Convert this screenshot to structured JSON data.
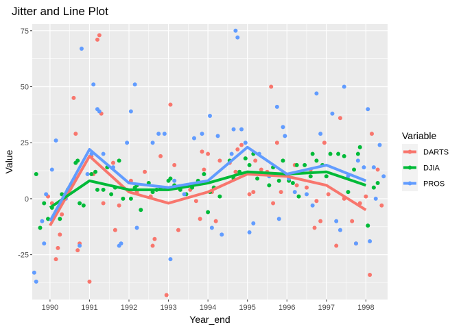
{
  "chart_data": {
    "type": "scatter+line",
    "title": "Jitter and Line Plot",
    "xlabel": "Year_end",
    "ylabel": "Value",
    "xlim": [
      1989.55,
      1998.55
    ],
    "ylim": [
      -45,
      78
    ],
    "x_ticks": [
      1990,
      1991,
      1992,
      1993,
      1994,
      1995,
      1996,
      1997,
      1998
    ],
    "x_tick_labels": [
      "1990",
      "1991",
      "1992",
      "1993",
      "1994",
      "1995",
      "1996",
      "1997",
      "1998"
    ],
    "y_ticks": [
      -25,
      0,
      25,
      50,
      75
    ],
    "y_tick_labels": [
      "-25",
      "0",
      "25",
      "50",
      "75"
    ],
    "grid": true,
    "legend": {
      "title": "Variable",
      "position": "right"
    },
    "series": [
      {
        "name": "DARTS",
        "color": "#F8766D",
        "line": {
          "x": [
            1990,
            1991,
            1992,
            1993,
            1994,
            1995,
            1996,
            1997,
            1998
          ],
          "y": [
            -12,
            19,
            3,
            -2,
            3,
            11,
            10,
            6,
            -5
          ]
        },
        "points": [
          [
            1989.95,
            1
          ],
          [
            1990.05,
            -2
          ],
          [
            1990.15,
            -27
          ],
          [
            1990.2,
            -22
          ],
          [
            1990.25,
            -16
          ],
          [
            1990.3,
            -7
          ],
          [
            1990.6,
            45
          ],
          [
            1990.65,
            29
          ],
          [
            1990.7,
            -23
          ],
          [
            1990.75,
            -20
          ],
          [
            1991.0,
            -37
          ],
          [
            1991.05,
            19
          ],
          [
            1991.1,
            11
          ],
          [
            1991.2,
            71
          ],
          [
            1991.25,
            73
          ],
          [
            1991.3,
            38
          ],
          [
            1991.35,
            -2
          ],
          [
            1991.6,
            16
          ],
          [
            1991.65,
            -14
          ],
          [
            1991.75,
            -3
          ],
          [
            1992.05,
            8
          ],
          [
            1992.2,
            3
          ],
          [
            1992.4,
            12
          ],
          [
            1992.55,
            1
          ],
          [
            1992.6,
            -21
          ],
          [
            1992.65,
            -18
          ],
          [
            1992.8,
            19
          ],
          [
            1992.95,
            -43
          ],
          [
            1993.05,
            42
          ],
          [
            1993.15,
            15
          ],
          [
            1993.25,
            -14
          ],
          [
            1993.55,
            4
          ],
          [
            1993.7,
            -1
          ],
          [
            1993.8,
            -9
          ],
          [
            1993.85,
            21
          ],
          [
            1993.9,
            13
          ],
          [
            1994.0,
            20
          ],
          [
            1994.1,
            3
          ],
          [
            1994.2,
            -10
          ],
          [
            1994.3,
            17
          ],
          [
            1994.55,
            16
          ],
          [
            1994.7,
            12
          ],
          [
            1994.75,
            22
          ],
          [
            1994.85,
            24
          ],
          [
            1995.05,
            2
          ],
          [
            1995.15,
            3
          ],
          [
            1995.2,
            17
          ],
          [
            1995.35,
            13
          ],
          [
            1995.5,
            12
          ],
          [
            1995.6,
            50
          ],
          [
            1995.65,
            -2
          ],
          [
            1995.75,
            25
          ],
          [
            1995.85,
            3
          ],
          [
            1995.95,
            11
          ],
          [
            1996.2,
            15
          ],
          [
            1996.25,
            6
          ],
          [
            1996.5,
            5
          ],
          [
            1996.6,
            13
          ],
          [
            1996.7,
            -13
          ],
          [
            1996.75,
            -1
          ],
          [
            1996.85,
            -10
          ],
          [
            1996.95,
            25
          ],
          [
            1997.05,
            2
          ],
          [
            1997.25,
            -21
          ],
          [
            1997.35,
            36
          ],
          [
            1997.45,
            0
          ],
          [
            1997.65,
            -10
          ],
          [
            1997.75,
            -20
          ],
          [
            1997.85,
            -2
          ],
          [
            1998.0,
            1
          ],
          [
            1998.1,
            -34
          ],
          [
            1998.15,
            29
          ],
          [
            1998.3,
            13
          ],
          [
            1998.4,
            -3
          ]
        ]
      },
      {
        "name": "DJIA",
        "color": "#00BA38",
        "line": {
          "x": [
            1990,
            1991,
            1992,
            1993,
            1994,
            1995,
            1996,
            1997,
            1998
          ],
          "y": [
            -4,
            8,
            4,
            4,
            7,
            12,
            11,
            12,
            6
          ]
        },
        "points": [
          [
            1989.65,
            11
          ],
          [
            1989.75,
            -13
          ],
          [
            1989.85,
            -2
          ],
          [
            1989.95,
            -9
          ],
          [
            1990.05,
            -4
          ],
          [
            1990.25,
            -9
          ],
          [
            1990.3,
            2
          ],
          [
            1990.45,
            4
          ],
          [
            1990.55,
            6
          ],
          [
            1990.65,
            16
          ],
          [
            1990.7,
            17
          ],
          [
            1990.75,
            -2
          ],
          [
            1990.85,
            -3
          ],
          [
            1991.05,
            11
          ],
          [
            1991.15,
            12
          ],
          [
            1991.2,
            4
          ],
          [
            1991.35,
            4
          ],
          [
            1991.45,
            14
          ],
          [
            1991.55,
            2
          ],
          [
            1991.65,
            5
          ],
          [
            1991.75,
            17
          ],
          [
            1991.85,
            0
          ],
          [
            1992.05,
            0
          ],
          [
            1992.15,
            5
          ],
          [
            1992.2,
            6
          ],
          [
            1992.3,
            -5
          ],
          [
            1992.5,
            7
          ],
          [
            1992.6,
            3
          ],
          [
            1992.7,
            4
          ],
          [
            1992.8,
            5
          ],
          [
            1993.0,
            8
          ],
          [
            1993.05,
            9
          ],
          [
            1993.15,
            6
          ],
          [
            1993.3,
            4
          ],
          [
            1993.45,
            2
          ],
          [
            1993.6,
            5
          ],
          [
            1993.75,
            8
          ],
          [
            1993.9,
            11
          ],
          [
            1994.0,
            -6
          ],
          [
            1994.05,
            3
          ],
          [
            1994.15,
            5
          ],
          [
            1994.3,
            1
          ],
          [
            1994.55,
            17
          ],
          [
            1994.65,
            9
          ],
          [
            1994.8,
            12
          ],
          [
            1994.95,
            18
          ],
          [
            1995.05,
            15
          ],
          [
            1995.15,
            20
          ],
          [
            1995.25,
            9
          ],
          [
            1995.35,
            11
          ],
          [
            1995.55,
            6
          ],
          [
            1995.65,
            14
          ],
          [
            1995.8,
            8
          ],
          [
            1995.9,
            17
          ],
          [
            1996.05,
            8
          ],
          [
            1996.15,
            7
          ],
          [
            1996.25,
            15
          ],
          [
            1996.3,
            1
          ],
          [
            1996.45,
            15
          ],
          [
            1996.6,
            10
          ],
          [
            1996.65,
            20
          ],
          [
            1996.75,
            17
          ],
          [
            1996.9,
            15
          ],
          [
            1997.0,
            10
          ],
          [
            1997.1,
            20
          ],
          [
            1997.3,
            20
          ],
          [
            1997.45,
            19
          ],
          [
            1997.55,
            3
          ],
          [
            1997.7,
            13
          ],
          [
            1997.8,
            20
          ],
          [
            1997.85,
            23
          ],
          [
            1998.05,
            -12
          ],
          [
            1998.2,
            5
          ],
          [
            1998.3,
            7
          ]
        ]
      },
      {
        "name": "PROS",
        "color": "#619CFF",
        "line": {
          "x": [
            1990,
            1991,
            1992,
            1993,
            1994,
            1995,
            1996,
            1997,
            1998
          ],
          "y": [
            -10,
            22,
            7,
            5,
            8,
            23,
            11,
            15,
            8
          ]
        },
        "points": [
          [
            1989.6,
            -33
          ],
          [
            1989.65,
            -37
          ],
          [
            1989.8,
            -10
          ],
          [
            1989.85,
            -20
          ],
          [
            1989.9,
            2
          ],
          [
            1990.05,
            13
          ],
          [
            1990.15,
            26
          ],
          [
            1990.4,
            0
          ],
          [
            1990.65,
            9
          ],
          [
            1990.75,
            -21
          ],
          [
            1990.8,
            67
          ],
          [
            1990.95,
            11
          ],
          [
            1991.05,
            20
          ],
          [
            1991.1,
            51
          ],
          [
            1991.2,
            40
          ],
          [
            1991.25,
            39
          ],
          [
            1991.35,
            20
          ],
          [
            1991.6,
            14
          ],
          [
            1991.75,
            -21
          ],
          [
            1991.8,
            -20
          ],
          [
            1991.95,
            25
          ],
          [
            1992.05,
            39
          ],
          [
            1992.15,
            51
          ],
          [
            1992.2,
            -13
          ],
          [
            1992.6,
            25
          ],
          [
            1992.75,
            29
          ],
          [
            1992.9,
            29
          ],
          [
            1993.05,
            -27
          ],
          [
            1993.15,
            8
          ],
          [
            1993.4,
            2
          ],
          [
            1993.65,
            27
          ],
          [
            1993.85,
            29
          ],
          [
            1994.05,
            37
          ],
          [
            1994.1,
            -13
          ],
          [
            1994.25,
            28
          ],
          [
            1994.35,
            -16
          ],
          [
            1994.6,
            20
          ],
          [
            1994.65,
            31
          ],
          [
            1994.7,
            75
          ],
          [
            1994.75,
            72
          ],
          [
            1994.85,
            31
          ],
          [
            1994.95,
            25
          ],
          [
            1995.05,
            -15
          ],
          [
            1995.15,
            -11
          ],
          [
            1995.3,
            20
          ],
          [
            1995.55,
            10
          ],
          [
            1995.75,
            41
          ],
          [
            1995.8,
            -9
          ],
          [
            1995.9,
            32
          ],
          [
            1995.95,
            28
          ],
          [
            1996.05,
            9
          ],
          [
            1996.2,
            3
          ],
          [
            1996.5,
            2
          ],
          [
            1996.65,
            -3
          ],
          [
            1996.75,
            47
          ],
          [
            1996.85,
            29
          ],
          [
            1997.15,
            38
          ],
          [
            1997.25,
            -10
          ],
          [
            1997.35,
            -14
          ],
          [
            1997.45,
            50
          ],
          [
            1997.55,
            10
          ],
          [
            1997.75,
            -20
          ],
          [
            1997.8,
            17
          ],
          [
            1997.95,
            14
          ],
          [
            1998.05,
            40
          ],
          [
            1998.1,
            -19
          ],
          [
            1998.2,
            14
          ],
          [
            1998.25,
            0
          ],
          [
            1998.35,
            24
          ],
          [
            1998.45,
            10
          ]
        ]
      }
    ]
  }
}
